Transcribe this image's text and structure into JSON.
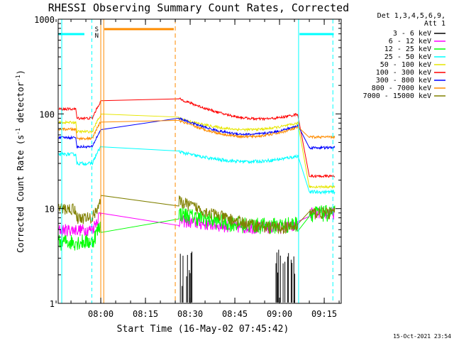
{
  "chart_data": {
    "type": "line",
    "title": "RHESSI Observing Summary Count Rates, Corrected",
    "xlabel": "Start Time (16-May-02 07:45:42)",
    "ylabel_main": "Corrected Count Rate (s",
    "ylabel_sup1": "-1",
    "ylabel_mid": " detector",
    "ylabel_sup2": "-1",
    "ylabel_end": ")",
    "footer": "15-Oct-2021 23:54",
    "yscale": "log",
    "ylim": [
      1,
      1000
    ],
    "xlim_minutes": [
      0,
      95
    ],
    "x_ticks": [
      {
        "m": 14.3,
        "label": "08:00"
      },
      {
        "m": 29.3,
        "label": "08:15"
      },
      {
        "m": 44.3,
        "label": "08:30"
      },
      {
        "m": 59.3,
        "label": "08:45"
      },
      {
        "m": 74.3,
        "label": "09:00"
      },
      {
        "m": 89.3,
        "label": "09:15"
      }
    ],
    "y_ticks": [
      {
        "v": 1,
        "label": "1"
      },
      {
        "v": 10,
        "label": "10"
      },
      {
        "v": 100,
        "label": "100"
      },
      {
        "v": 1000,
        "label": "1000"
      }
    ],
    "legend_header": [
      "Det 1,3,4,5,6,9,",
      "Att 1"
    ],
    "series": [
      {
        "name": "3 - 6 keV",
        "color": "#000000"
      },
      {
        "name": "6 - 12 keV",
        "color": "#ff00ff"
      },
      {
        "name": "12 - 25 keV",
        "color": "#00ff00"
      },
      {
        "name": "25 - 50 keV",
        "color": "#00ffff"
      },
      {
        "name": "50 - 100 keV",
        "color": "#e6e600"
      },
      {
        "name": "100 - 300 keV",
        "color": "#ff0000"
      },
      {
        "name": "300 - 800 keV",
        "color": "#0000ff"
      },
      {
        "name": "800 - 7000 keV",
        "color": "#ff8c00"
      },
      {
        "name": "7000 - 15000 keV",
        "color": "#808000"
      }
    ],
    "markers": [
      {
        "label": "S",
        "color": "#ff8c00"
      },
      {
        "label": "N",
        "color": "#00ffff"
      }
    ]
  }
}
